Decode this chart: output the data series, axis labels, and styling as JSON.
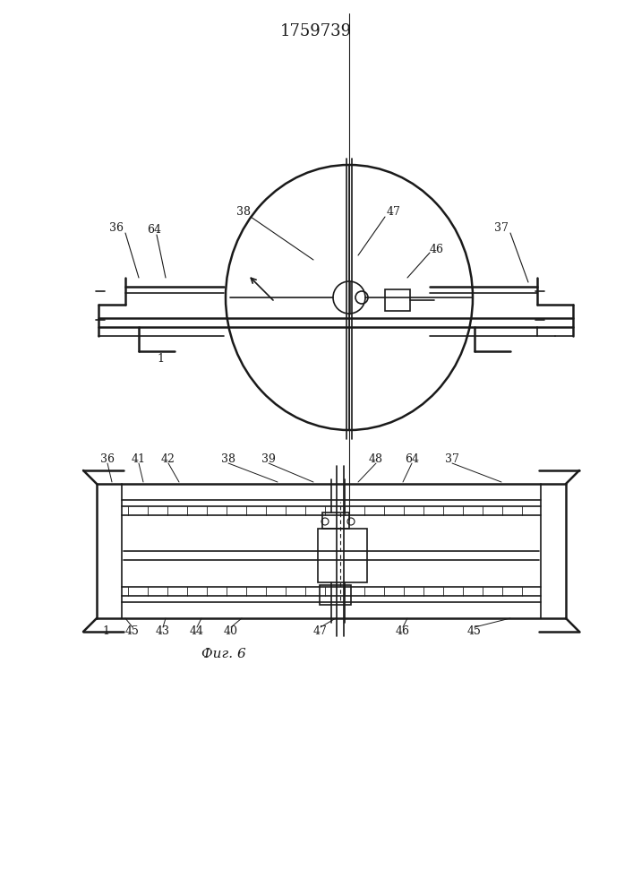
{
  "title": "1759739",
  "fig_label": "Фиг. 6",
  "bg_color": "#ffffff",
  "line_color": "#1a1a1a",
  "title_fontsize": 13,
  "label_fontsize": 9.5
}
